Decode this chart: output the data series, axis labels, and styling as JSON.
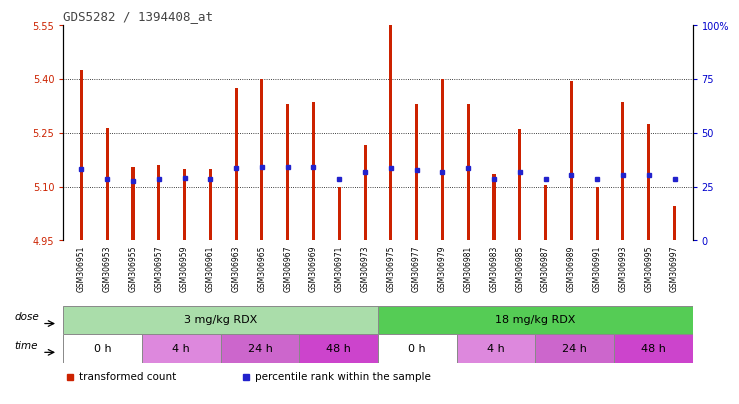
{
  "title": "GDS5282 / 1394408_at",
  "samples": [
    "GSM306951",
    "GSM306953",
    "GSM306955",
    "GSM306957",
    "GSM306959",
    "GSM306961",
    "GSM306963",
    "GSM306965",
    "GSM306967",
    "GSM306969",
    "GSM306971",
    "GSM306973",
    "GSM306975",
    "GSM306977",
    "GSM306979",
    "GSM306981",
    "GSM306983",
    "GSM306985",
    "GSM306987",
    "GSM306989",
    "GSM306991",
    "GSM306993",
    "GSM306995",
    "GSM306997"
  ],
  "red_values": [
    5.425,
    5.265,
    5.155,
    5.16,
    5.15,
    5.15,
    5.375,
    5.4,
    5.33,
    5.335,
    5.1,
    5.215,
    5.55,
    5.33,
    5.4,
    5.33,
    5.135,
    5.26,
    5.105,
    5.395,
    5.1,
    5.335,
    5.275,
    5.045
  ],
  "blue_values": [
    5.148,
    5.122,
    5.117,
    5.122,
    5.124,
    5.12,
    5.152,
    5.155,
    5.155,
    5.155,
    5.12,
    5.142,
    5.152,
    5.147,
    5.142,
    5.152,
    5.12,
    5.142,
    5.12,
    5.132,
    5.12,
    5.132,
    5.132,
    5.12
  ],
  "base": 4.95,
  "ylim_left": [
    4.95,
    5.55
  ],
  "ylim_right": [
    0,
    100
  ],
  "yticks_left": [
    4.95,
    5.1,
    5.25,
    5.4,
    5.55
  ],
  "yticks_right": [
    0,
    25,
    50,
    75,
    100
  ],
  "ytick_labels_right": [
    "0",
    "25",
    "50",
    "75",
    "100%"
  ],
  "dotted_grid": [
    5.1,
    5.25,
    5.4
  ],
  "dose_groups": [
    {
      "label": "3 mg/kg RDX",
      "start": 0,
      "end": 12,
      "color": "#aaddaa"
    },
    {
      "label": "18 mg/kg RDX",
      "start": 12,
      "end": 24,
      "color": "#55cc55"
    }
  ],
  "time_groups": [
    {
      "label": "0 h",
      "start": 0,
      "end": 3,
      "color": "#ffffff"
    },
    {
      "label": "4 h",
      "start": 3,
      "end": 6,
      "color": "#dd88dd"
    },
    {
      "label": "24 h",
      "start": 6,
      "end": 9,
      "color": "#cc66cc"
    },
    {
      "label": "48 h",
      "start": 9,
      "end": 12,
      "color": "#cc44cc"
    },
    {
      "label": "0 h",
      "start": 12,
      "end": 15,
      "color": "#ffffff"
    },
    {
      "label": "4 h",
      "start": 15,
      "end": 18,
      "color": "#dd88dd"
    },
    {
      "label": "24 h",
      "start": 18,
      "end": 21,
      "color": "#cc66cc"
    },
    {
      "label": "48 h",
      "start": 21,
      "end": 24,
      "color": "#cc44cc"
    }
  ],
  "bar_color": "#cc2200",
  "blue_color": "#2222cc",
  "title_color": "#444444",
  "left_tick_color": "#cc2200",
  "right_tick_color": "#0000cc",
  "bar_width": 0.12,
  "legend_items": [
    {
      "color": "#cc2200",
      "label": "transformed count"
    },
    {
      "color": "#2222cc",
      "label": "percentile rank within the sample"
    }
  ],
  "xlabel_bg_color": "#cccccc",
  "border_color": "#888888"
}
